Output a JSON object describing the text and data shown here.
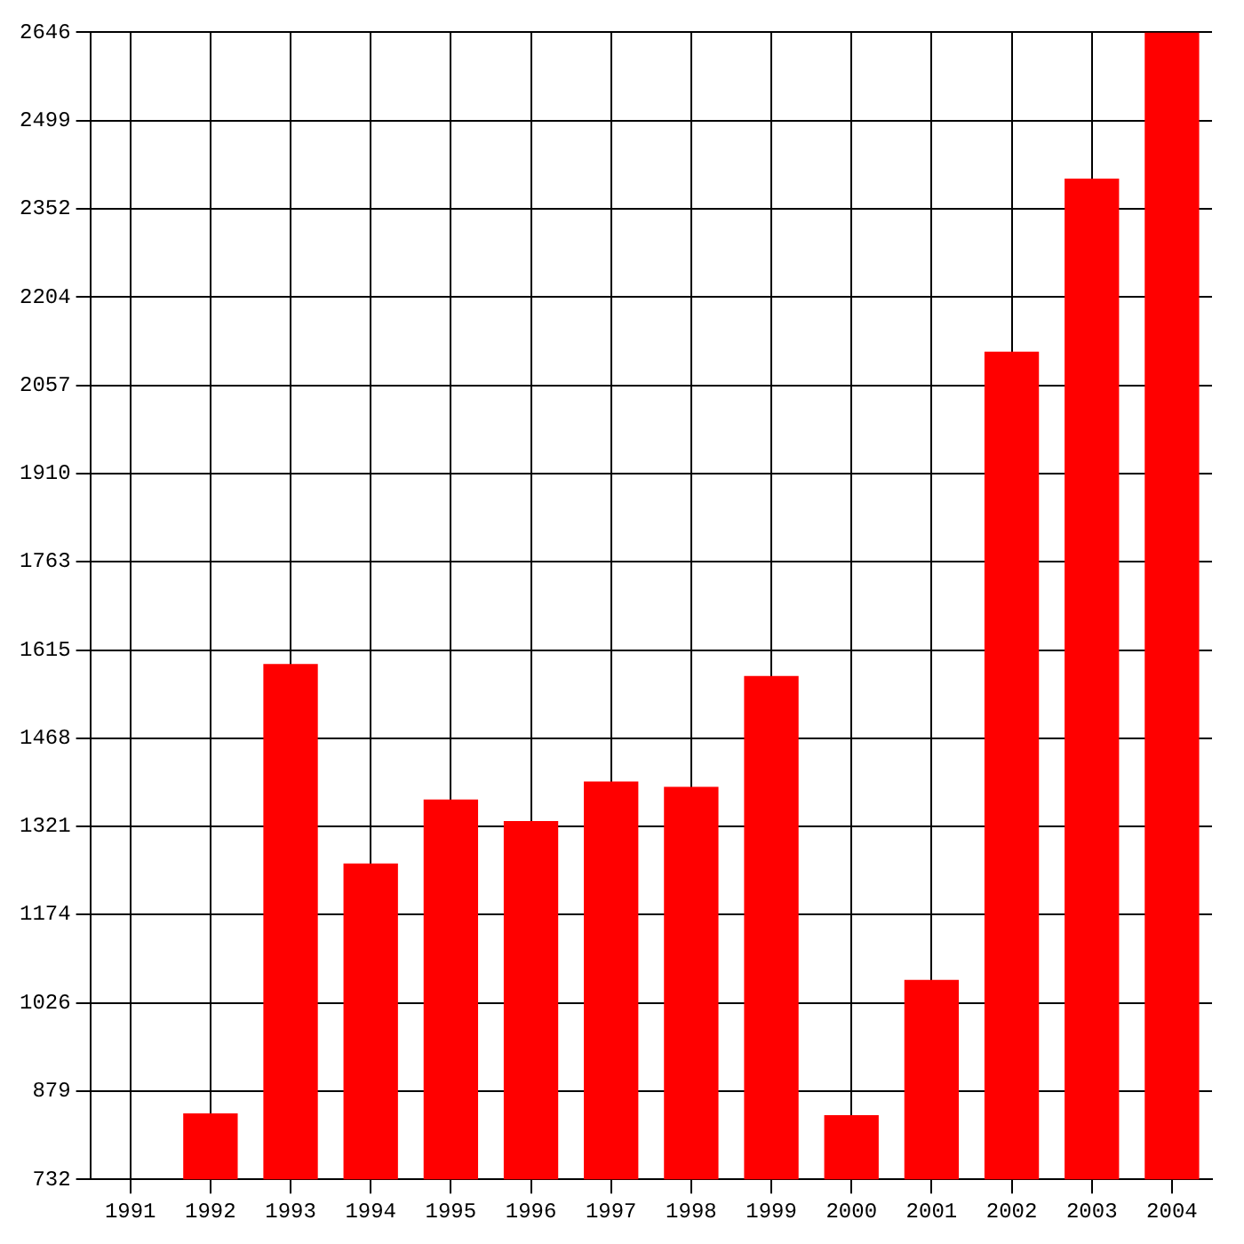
{
  "chart_data": {
    "type": "bar",
    "categories": [
      "1991",
      "1992",
      "1993",
      "1994",
      "1995",
      "1996",
      "1997",
      "1998",
      "1999",
      "2000",
      "2001",
      "2002",
      "2003",
      "2004"
    ],
    "values": [
      null,
      842,
      1592,
      1259,
      1366,
      1330,
      1396,
      1387,
      1572,
      839,
      1065,
      2113,
      2402,
      2646
    ],
    "color": "#ff0000",
    "ylim": [
      732,
      2646
    ],
    "yticks": [
      732,
      879,
      1026,
      1174,
      1321,
      1468,
      1615,
      1763,
      1910,
      2057,
      2204,
      2352,
      2499,
      2646
    ],
    "grid": true
  }
}
